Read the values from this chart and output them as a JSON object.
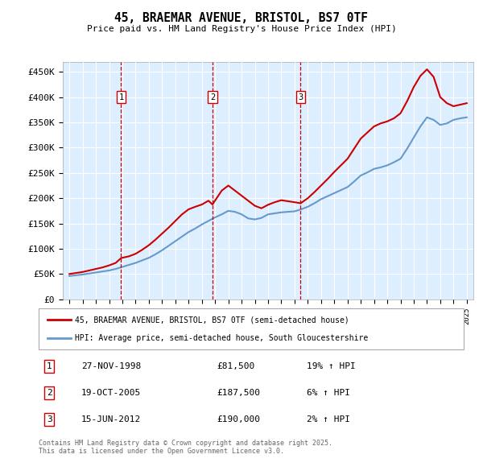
{
  "title": "45, BRAEMAR AVENUE, BRISTOL, BS7 0TF",
  "subtitle": "Price paid vs. HM Land Registry's House Price Index (HPI)",
  "ylim": [
    0,
    470000
  ],
  "yticks": [
    0,
    50000,
    100000,
    150000,
    200000,
    250000,
    300000,
    350000,
    400000,
    450000
  ],
  "ytick_labels": [
    "£0",
    "£50K",
    "£100K",
    "£150K",
    "£200K",
    "£250K",
    "£300K",
    "£350K",
    "£400K",
    "£450K"
  ],
  "bg_color": "#ddeeff",
  "red_color": "#cc0000",
  "blue_color": "#6699cc",
  "grid_color": "#ffffff",
  "sale_dates_num": [
    1998.9,
    2005.8,
    2012.46
  ],
  "sale_prices": [
    81500,
    187500,
    190000
  ],
  "sale_labels": [
    "1",
    "2",
    "3"
  ],
  "legend_red": "45, BRAEMAR AVENUE, BRISTOL, BS7 0TF (semi-detached house)",
  "legend_blue": "HPI: Average price, semi-detached house, South Gloucestershire",
  "table_rows": [
    [
      "1",
      "27-NOV-1998",
      "£81,500",
      "19% ↑ HPI"
    ],
    [
      "2",
      "19-OCT-2005",
      "£187,500",
      "6% ↑ HPI"
    ],
    [
      "3",
      "15-JUN-2012",
      "£190,000",
      "2% ↑ HPI"
    ]
  ],
  "footer": "Contains HM Land Registry data © Crown copyright and database right 2025.\nThis data is licensed under the Open Government Licence v3.0.",
  "hpi_years": [
    1995.0,
    1995.5,
    1996.0,
    1996.5,
    1997.0,
    1997.5,
    1998.0,
    1998.5,
    1999.0,
    1999.5,
    2000.0,
    2000.5,
    2001.0,
    2001.5,
    2002.0,
    2002.5,
    2003.0,
    2003.5,
    2004.0,
    2004.5,
    2005.0,
    2005.5,
    2006.0,
    2006.5,
    2007.0,
    2007.5,
    2008.0,
    2008.5,
    2009.0,
    2009.5,
    2010.0,
    2010.5,
    2011.0,
    2011.5,
    2012.0,
    2012.5,
    2013.0,
    2013.5,
    2014.0,
    2014.5,
    2015.0,
    2015.5,
    2016.0,
    2016.5,
    2017.0,
    2017.5,
    2018.0,
    2018.5,
    2019.0,
    2019.5,
    2020.0,
    2020.5,
    2021.0,
    2021.5,
    2022.0,
    2022.5,
    2023.0,
    2023.5,
    2024.0,
    2024.5,
    2025.0
  ],
  "hpi_values": [
    46000,
    47500,
    49000,
    51000,
    53000,
    55000,
    57000,
    60000,
    64000,
    68000,
    72000,
    77000,
    82000,
    89000,
    97000,
    106000,
    115000,
    124000,
    133000,
    140000,
    148000,
    155000,
    162000,
    168000,
    175000,
    173000,
    168000,
    160000,
    158000,
    161000,
    168000,
    170000,
    172000,
    173000,
    174000,
    178000,
    183000,
    190000,
    198000,
    204000,
    210000,
    216000,
    222000,
    233000,
    245000,
    251000,
    258000,
    261000,
    265000,
    271000,
    278000,
    298000,
    320000,
    342000,
    360000,
    355000,
    345000,
    348000,
    355000,
    358000,
    360000
  ],
  "red_years": [
    1995.0,
    1995.5,
    1996.0,
    1996.5,
    1997.0,
    1997.5,
    1998.0,
    1998.5,
    1998.9,
    1999.5,
    2000.0,
    2000.5,
    2001.0,
    2001.5,
    2002.0,
    2002.5,
    2003.0,
    2003.5,
    2004.0,
    2004.5,
    2005.0,
    2005.5,
    2005.8,
    2006.5,
    2007.0,
    2007.5,
    2008.0,
    2008.5,
    2009.0,
    2009.5,
    2010.0,
    2010.5,
    2011.0,
    2011.5,
    2012.0,
    2012.46,
    2013.0,
    2013.5,
    2014.0,
    2014.5,
    2015.0,
    2015.5,
    2016.0,
    2016.5,
    2017.0,
    2017.5,
    2018.0,
    2018.5,
    2019.0,
    2019.5,
    2020.0,
    2020.5,
    2021.0,
    2021.5,
    2022.0,
    2022.5,
    2023.0,
    2023.5,
    2024.0,
    2024.5,
    2025.0
  ],
  "red_values": [
    50000,
    52000,
    54000,
    57000,
    60000,
    63000,
    67000,
    72000,
    81500,
    85000,
    90000,
    98000,
    107000,
    118000,
    130000,
    142000,
    155000,
    168000,
    178000,
    183000,
    187500,
    195000,
    187500,
    215000,
    225000,
    215000,
    205000,
    195000,
    185000,
    180000,
    187000,
    192000,
    196000,
    194000,
    192000,
    190000,
    200000,
    212000,
    225000,
    238000,
    252000,
    265000,
    278000,
    298000,
    318000,
    330000,
    342000,
    348000,
    352000,
    358000,
    368000,
    392000,
    420000,
    442000,
    455000,
    440000,
    400000,
    388000,
    382000,
    385000,
    388000
  ]
}
